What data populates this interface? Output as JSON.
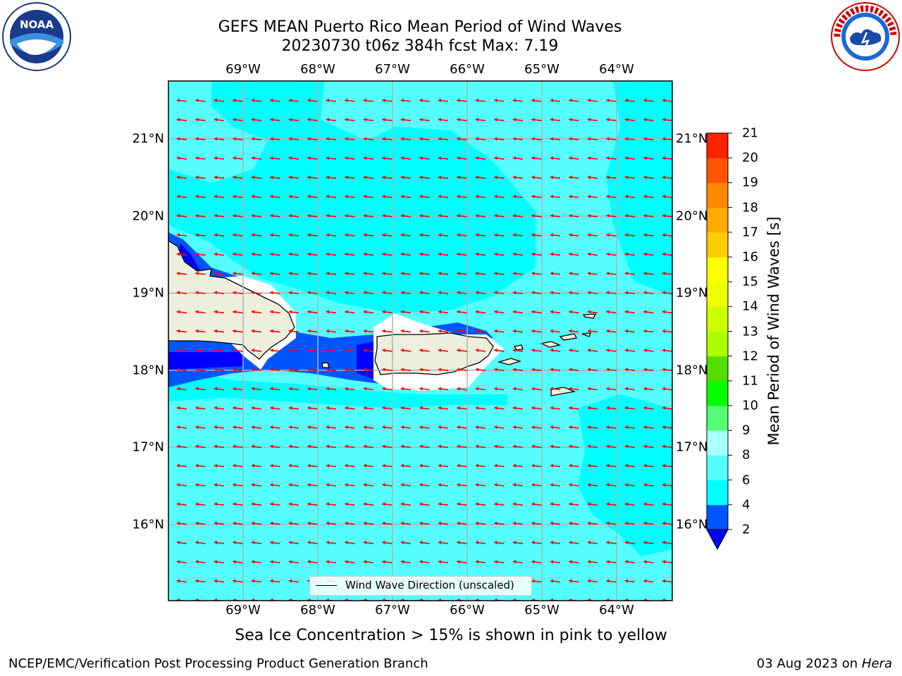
{
  "title_line1": "GEFS MEAN Puerto Rico Mean Period of Wind Waves",
  "title_line2": "20230730 t06z 384h fcst   Max: 7.19",
  "subtitle": "Sea Ice Concentration > 15% is shown in pink to yellow",
  "footer_left": "NCEP/EMC/Verification Post Processing Product Generation Branch",
  "footer_date": "03 Aug 2023 on",
  "footer_host": "Hera",
  "legend_label": "Wind Wave Direction (unscaled)",
  "colorbar_title": "Mean Period of Wind Waves [s]",
  "logos": {
    "left": "NOAA logo",
    "right": "National Weather Service logo"
  },
  "map": {
    "lon_range": [
      -70.0,
      -63.25
    ],
    "lat_range": [
      15.0,
      21.75
    ],
    "lon_ticks": [
      {
        "value": -69,
        "label": "69°W"
      },
      {
        "value": -68,
        "label": "68°W"
      },
      {
        "value": -67,
        "label": "67°W"
      },
      {
        "value": -66,
        "label": "66°W"
      },
      {
        "value": -65,
        "label": "65°W"
      },
      {
        "value": -64,
        "label": "64°W"
      }
    ],
    "lat_ticks": [
      {
        "value": 21,
        "label": "21°N"
      },
      {
        "value": 20,
        "label": "20°N"
      },
      {
        "value": 19,
        "label": "19°N"
      },
      {
        "value": 18,
        "label": "18°N"
      },
      {
        "value": 17,
        "label": "17°N"
      },
      {
        "value": 16,
        "label": "16°N"
      }
    ],
    "ocean_color": "#55ffff",
    "land_color": "#eeeedc",
    "arrow_color": "#ff0000",
    "wind_wave_direction": "toward west"
  },
  "colorbar": {
    "levels": [
      2,
      4,
      6,
      8,
      9,
      10,
      11,
      12,
      13,
      14,
      15,
      16,
      17,
      18,
      19,
      20,
      21
    ],
    "colors": [
      "#0055ff",
      "#00ffff",
      "#55ffff",
      "#aaffff",
      "#55ff77",
      "#00ff00",
      "#55dd00",
      "#aaff00",
      "#ccff00",
      "#eeff00",
      "#ffff00",
      "#ffcc00",
      "#ffaa00",
      "#ff8800",
      "#ff5500",
      "#ff2200"
    ],
    "under_color": "#0000ff"
  }
}
